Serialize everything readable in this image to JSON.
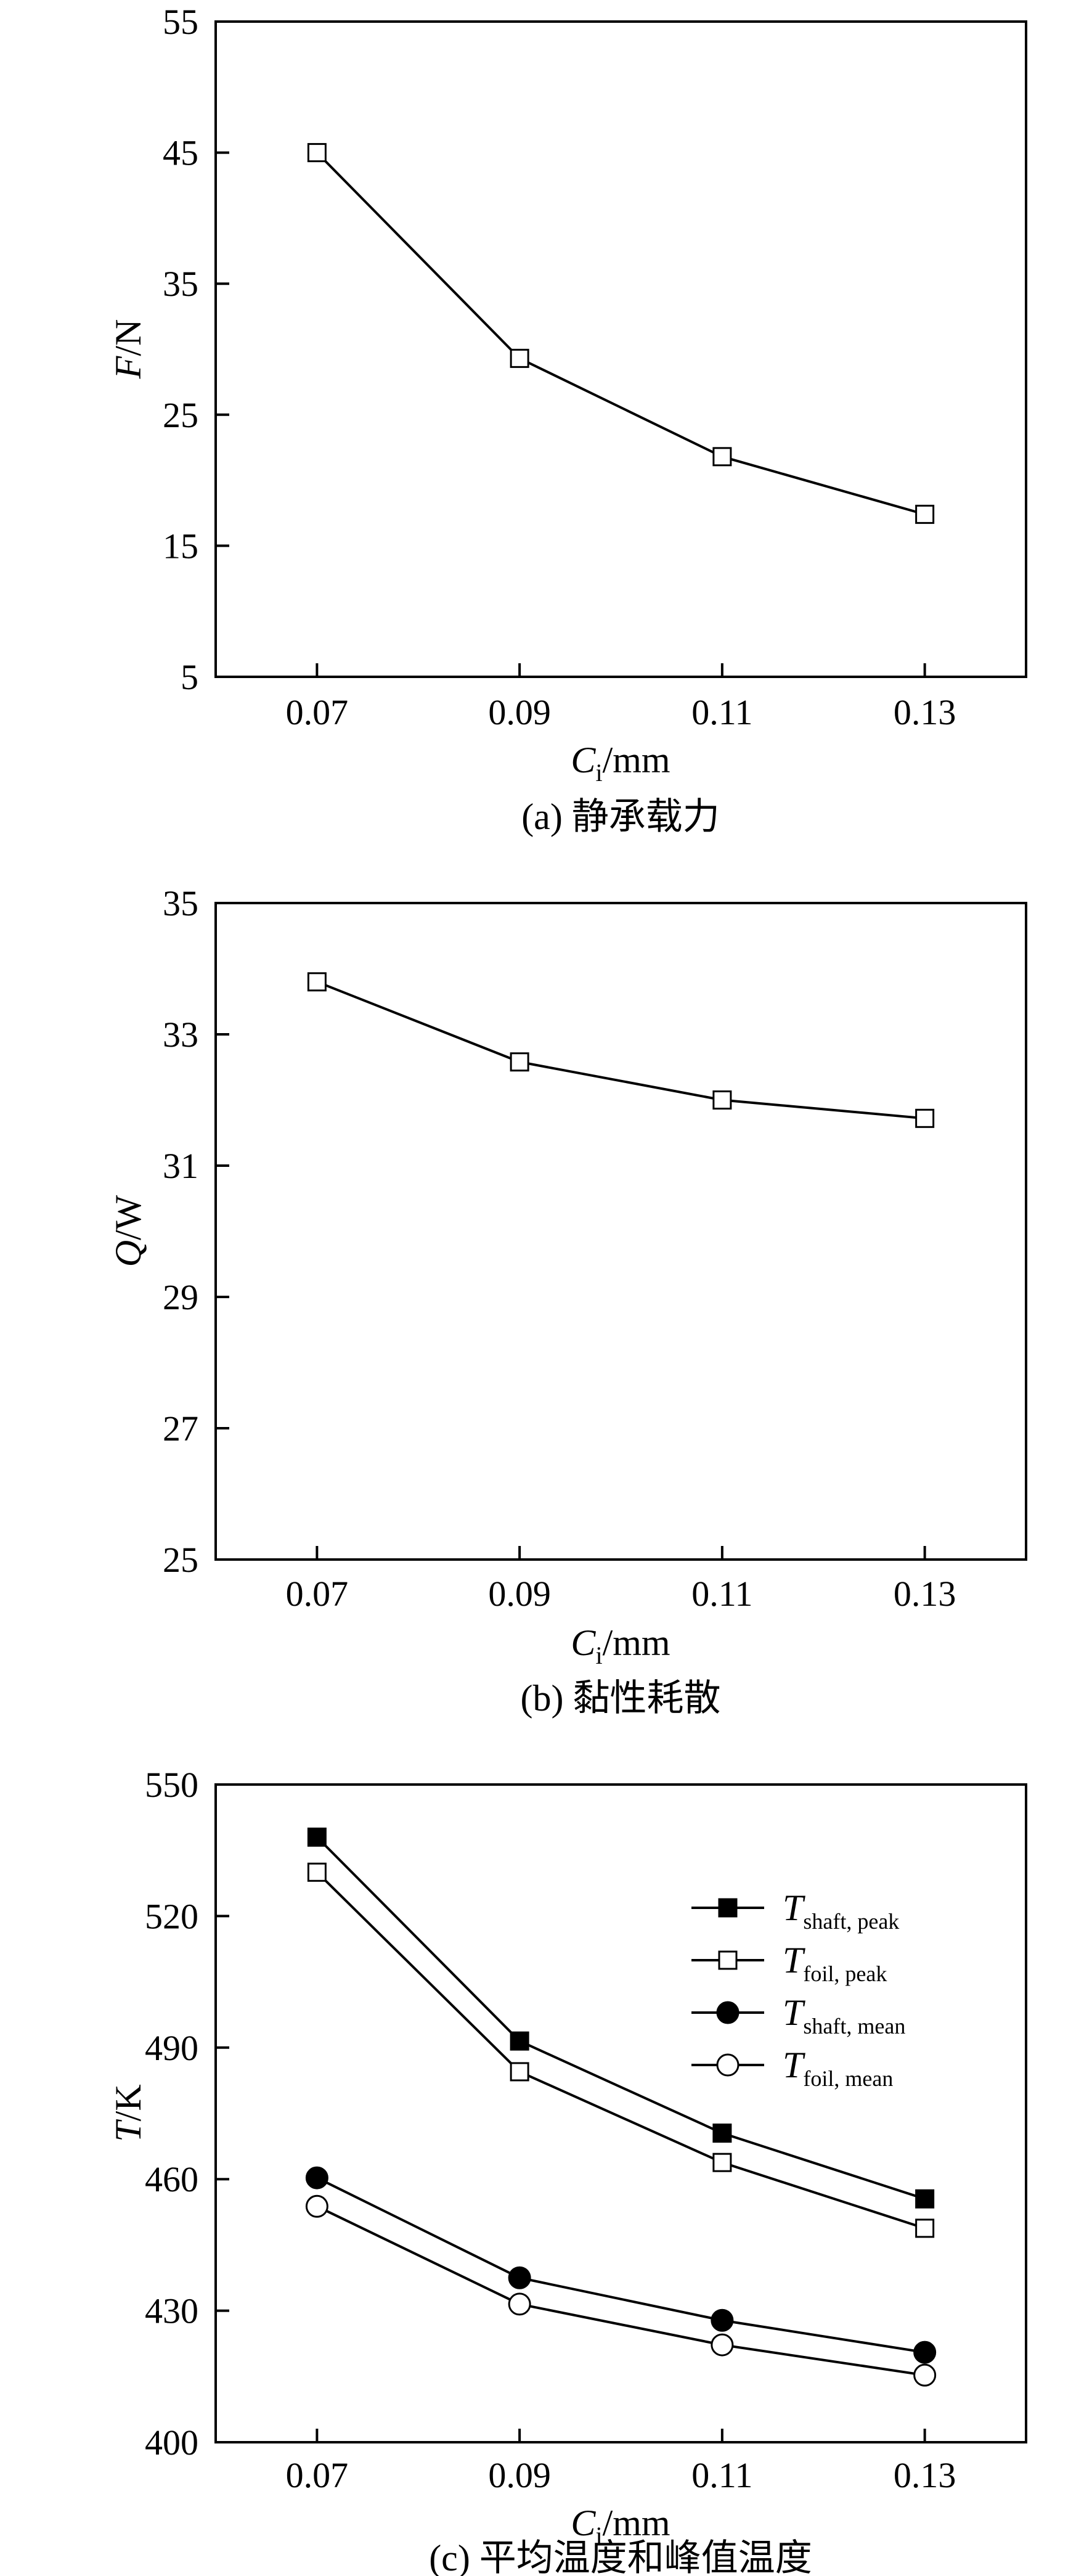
{
  "chart_data": [
    {
      "id": "a",
      "type": "line",
      "caption": "(a) 静承载力",
      "xlabel": {
        "main": "C",
        "sub": "i",
        "unit": "/mm"
      },
      "ylabel": {
        "main": "F",
        "unit": "/N"
      },
      "categories": [
        "0.07",
        "0.09",
        "0.11",
        "0.13"
      ],
      "x": [
        0.07,
        0.09,
        0.11,
        0.13
      ],
      "xlim": [
        0.06,
        0.14
      ],
      "ylim": [
        5,
        55
      ],
      "yticks": [
        5,
        15,
        25,
        35,
        45,
        55
      ],
      "grid": false,
      "series": [
        {
          "marker": "square-open",
          "values": [
            45.0,
            29.3,
            21.8,
            17.4
          ]
        }
      ]
    },
    {
      "id": "b",
      "type": "line",
      "caption": "(b) 黏性耗散",
      "xlabel": {
        "main": "C",
        "sub": "i",
        "unit": "/mm"
      },
      "ylabel": {
        "main": "Q",
        "unit": "/W"
      },
      "categories": [
        "0.07",
        "0.09",
        "0.11",
        "0.13"
      ],
      "x": [
        0.07,
        0.09,
        0.11,
        0.13
      ],
      "xlim": [
        0.06,
        0.14
      ],
      "ylim": [
        25,
        35
      ],
      "yticks": [
        25,
        27,
        29,
        31,
        33,
        35
      ],
      "grid": false,
      "series": [
        {
          "marker": "square-open",
          "values": [
            33.8,
            32.58,
            32.0,
            31.72
          ]
        }
      ]
    },
    {
      "id": "c",
      "type": "line",
      "caption": "(c) 平均温度和峰值温度",
      "xlabel": {
        "main": "C",
        "sub": "i",
        "unit": "/mm"
      },
      "ylabel": {
        "main": "T",
        "unit": "/K"
      },
      "categories": [
        "0.07",
        "0.09",
        "0.11",
        "0.13"
      ],
      "x": [
        0.07,
        0.09,
        0.11,
        0.13
      ],
      "xlim": [
        0.06,
        0.14
      ],
      "ylim": [
        400,
        550
      ],
      "yticks": [
        400,
        430,
        460,
        490,
        520,
        550
      ],
      "grid": false,
      "legend_position": "top-right",
      "series": [
        {
          "name": "T",
          "name_sub": "shaft, peak",
          "marker": "square-filled",
          "values": [
            538.0,
            491.5,
            470.5,
            455.5
          ]
        },
        {
          "name": "T",
          "name_sub": "foil, peak",
          "marker": "square-open",
          "values": [
            530.0,
            484.5,
            463.8,
            448.8
          ]
        },
        {
          "name": "T",
          "name_sub": "shaft, mean",
          "marker": "circle-filled",
          "values": [
            460.3,
            437.5,
            427.8,
            420.5
          ]
        },
        {
          "name": "T",
          "name_sub": "foil, mean",
          "marker": "circle-open",
          "values": [
            453.8,
            431.5,
            422.2,
            415.3
          ]
        }
      ]
    }
  ]
}
